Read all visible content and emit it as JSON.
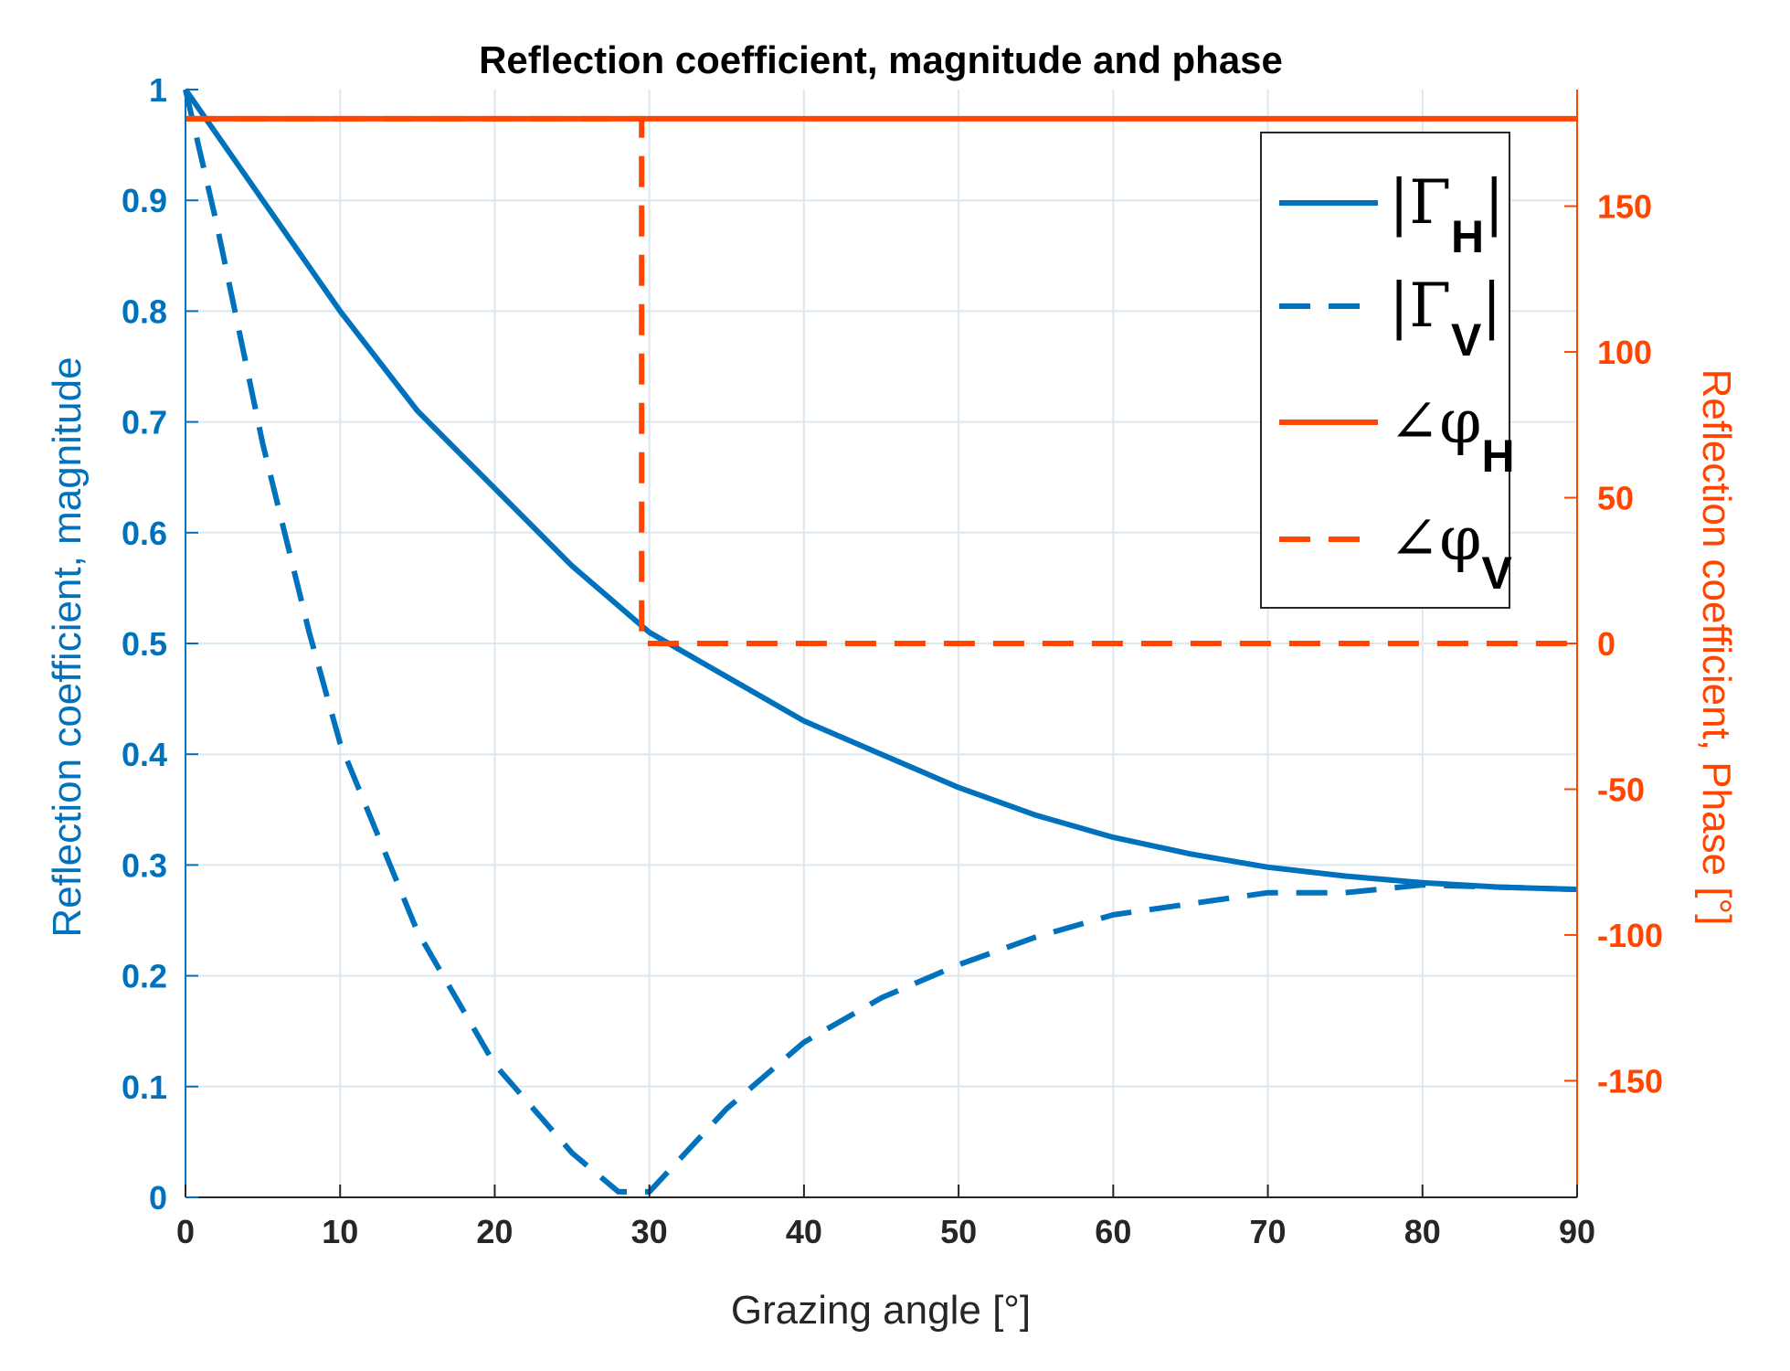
{
  "chart_data": {
    "type": "line",
    "title": "Reflection coefficient, magnitude and phase",
    "xlabel": "Grazing angle [°]",
    "ylabel_left": "Reflection coefficient, magnitude",
    "ylabel_right": "Reflection coefficient, Phase [°]",
    "xlim": [
      0,
      90
    ],
    "ylim_left": [
      0,
      1
    ],
    "ylim_right": [
      -190,
      190
    ],
    "x_ticks": [
      "0",
      "10",
      "20",
      "30",
      "40",
      "50",
      "60",
      "70",
      "80",
      "90"
    ],
    "y_left_ticks": [
      "0",
      "0.1",
      "0.2",
      "0.3",
      "0.4",
      "0.5",
      "0.6",
      "0.7",
      "0.8",
      "0.9",
      "1"
    ],
    "y_right_ticks": [
      "-150",
      "-100",
      "-50",
      "0",
      "50",
      "100",
      "150"
    ],
    "grid": true,
    "legend_position": "top-right",
    "colors": {
      "magnitude": "#0072BD",
      "phase": "#FF4500",
      "left_axis": "#0072BD",
      "right_axis": "#FF4500",
      "grid": "#DCE8F0"
    },
    "series": [
      {
        "name": "|ΓH|",
        "axis": "left",
        "style": "solid",
        "x": [
          0,
          5,
          10,
          15,
          20,
          25,
          30,
          35,
          40,
          45,
          50,
          55,
          60,
          65,
          70,
          75,
          80,
          85,
          90
        ],
        "y": [
          1.0,
          0.9,
          0.8,
          0.71,
          0.64,
          0.57,
          0.51,
          0.47,
          0.43,
          0.4,
          0.37,
          0.345,
          0.325,
          0.31,
          0.298,
          0.29,
          0.284,
          0.28,
          0.278
        ]
      },
      {
        "name": "|ΓV|",
        "axis": "left",
        "style": "dashed",
        "x": [
          0,
          2,
          5,
          8,
          10,
          15,
          20,
          25,
          28,
          30,
          35,
          40,
          45,
          50,
          55,
          60,
          65,
          70,
          75,
          80,
          85,
          90
        ],
        "y": [
          1.0,
          0.88,
          0.68,
          0.51,
          0.41,
          0.24,
          0.12,
          0.04,
          0.005,
          0.005,
          0.08,
          0.14,
          0.18,
          0.21,
          0.235,
          0.255,
          0.265,
          0.275,
          0.275,
          0.282,
          0.28,
          0.278
        ]
      },
      {
        "name": "∠φH",
        "axis": "right",
        "style": "solid",
        "x": [
          0,
          90
        ],
        "y": [
          180,
          180
        ]
      },
      {
        "name": "∠φV",
        "axis": "right",
        "style": "dashed",
        "x": [
          0,
          29.5,
          29.5,
          90
        ],
        "y": [
          180,
          180,
          0,
          0
        ]
      }
    ],
    "legend": [
      {
        "main": "|Γ",
        "sub": "H",
        "close": "|",
        "series": 0
      },
      {
        "main": "|Γ",
        "sub": "V",
        "close": "|",
        "series": 1
      },
      {
        "main": "∠φ",
        "sub": "H",
        "close": "",
        "series": 2
      },
      {
        "main": "∠φ",
        "sub": "V",
        "close": "",
        "series": 3
      }
    ]
  }
}
